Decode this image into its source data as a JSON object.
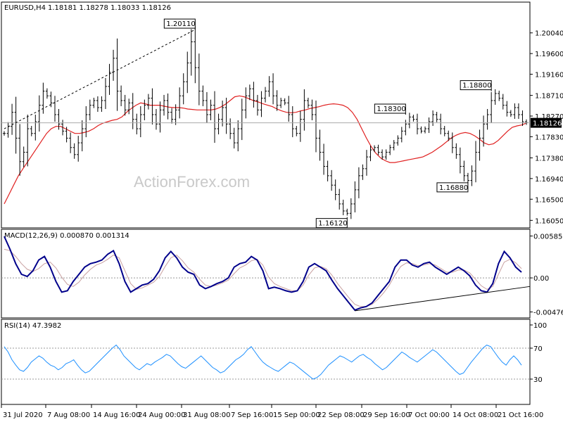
{
  "chart_data": [
    {
      "type": "candlestick",
      "symbol_label": "EURUSD,H4",
      "ohlc_label": "1.18181 1.18278 1.18033 1.18126",
      "ylim": [
        1.1595,
        1.2062
      ],
      "ytick_labels": [
        "1.20040",
        "1.19600",
        "1.19160",
        "1.18710",
        "1.18270",
        "1.17830",
        "1.17380",
        "1.16940",
        "1.16500",
        "1.16050"
      ],
      "current_price": 1.18126,
      "current_price_label": "1.18126",
      "close_series": [
        1.179,
        1.1805,
        1.1835,
        1.178,
        1.173,
        1.175,
        1.18,
        1.179,
        1.1815,
        1.185,
        1.188,
        1.187,
        1.1855,
        1.183,
        1.181,
        1.1795,
        1.178,
        1.176,
        1.1745,
        1.177,
        1.18,
        1.183,
        1.185,
        1.186,
        1.1845,
        1.186,
        1.189,
        1.192,
        1.195,
        1.188,
        1.186,
        1.184,
        1.1855,
        1.182,
        1.18,
        1.183,
        1.185,
        1.1865,
        1.183,
        1.181,
        1.184,
        1.186,
        1.1835,
        1.182,
        1.184,
        1.187,
        1.19,
        1.194,
        1.1985,
        1.193,
        1.188,
        1.186,
        1.183,
        1.185,
        1.18,
        1.182,
        1.1845,
        1.181,
        1.179,
        1.177,
        1.18,
        1.184,
        1.187,
        1.1885,
        1.186,
        1.184,
        1.1865,
        1.188,
        1.19,
        1.187,
        1.185,
        1.186,
        1.1855,
        1.183,
        1.18,
        1.179,
        1.182,
        1.186,
        1.185,
        1.183,
        1.178,
        1.175,
        1.172,
        1.17,
        1.168,
        1.166,
        1.164,
        1.1625,
        1.162,
        1.164,
        1.167,
        1.17,
        1.1715,
        1.174,
        1.1755,
        1.176,
        1.175,
        1.174,
        1.175,
        1.176,
        1.177,
        1.178,
        1.1795,
        1.181,
        1.1825,
        1.182,
        1.18,
        1.1795,
        1.18,
        1.1815,
        1.183,
        1.182,
        1.18,
        1.179,
        1.178,
        1.176,
        1.1745,
        1.172,
        1.17,
        1.169,
        1.171,
        1.175,
        1.178,
        1.181,
        1.183,
        1.186,
        1.1875,
        1.1865,
        1.185,
        1.1835,
        1.183,
        1.1845,
        1.183,
        1.1815,
        1.1813
      ],
      "moving_average_series": [
        1.164,
        1.166,
        1.168,
        1.17,
        1.1715,
        1.173,
        1.1745,
        1.176,
        1.1775,
        1.179,
        1.18,
        1.1805,
        1.1805,
        1.18,
        1.1795,
        1.179,
        1.179,
        1.1792,
        1.1795,
        1.18,
        1.1807,
        1.1812,
        1.1815,
        1.1818,
        1.182,
        1.1825,
        1.1835,
        1.1843,
        1.185,
        1.1855,
        1.1853,
        1.185,
        1.185,
        1.185,
        1.1848,
        1.1846,
        1.1845,
        1.1845,
        1.1844,
        1.1842,
        1.1841,
        1.184,
        1.184,
        1.184,
        1.184,
        1.1842,
        1.1846,
        1.1852,
        1.186,
        1.1868,
        1.187,
        1.1868,
        1.1864,
        1.186,
        1.1857,
        1.1853,
        1.185,
        1.1847,
        1.1842,
        1.1838,
        1.1835,
        1.1834,
        1.1835,
        1.1838,
        1.184,
        1.1843,
        1.1845,
        1.1847,
        1.185,
        1.1852,
        1.1853,
        1.1852,
        1.185,
        1.1845,
        1.1835,
        1.182,
        1.18,
        1.178,
        1.1762,
        1.1748,
        1.1738,
        1.1732,
        1.1728,
        1.1728,
        1.173,
        1.1732,
        1.1734,
        1.1736,
        1.1738,
        1.174,
        1.1745,
        1.175,
        1.1757,
        1.1764,
        1.1772,
        1.178,
        1.1786,
        1.179,
        1.1792,
        1.179,
        1.1785,
        1.1778,
        1.177,
        1.1766,
        1.1768,
        1.1775,
        1.1785,
        1.1795,
        1.1803,
        1.1806,
        1.1808,
        1.1812
      ],
      "annotations": [
        {
          "label": "1.20110",
          "price": 1.2011,
          "index": 49
        },
        {
          "label": "1.18300",
          "price": 1.183,
          "index": 103
        },
        {
          "label": "1.16120",
          "price": 1.1612,
          "index": 88
        },
        {
          "label": "1.18800",
          "price": 1.188,
          "index": 125
        },
        {
          "label": "1.16880",
          "price": 1.1688,
          "index": 119
        }
      ],
      "trendline": {
        "style": "dashed",
        "from": [
          0,
          1.18
        ],
        "to": [
          49,
          1.2011
        ]
      }
    },
    {
      "type": "line",
      "title": "MACD(12,26,9) 0.000870 0.001314",
      "ylim": [
        -0.0052,
        0.0064
      ],
      "ytick_labels": [
        "0.005852",
        "0.00",
        "-0.004761"
      ],
      "series": [
        {
          "values": [
            0.0058,
            0.004,
            0.002,
            0.0005,
            0.0002,
            0.001,
            0.0025,
            0.003,
            0.0015,
            -0.0005,
            -0.002,
            -0.0018,
            -0.0005,
            0.0005,
            0.0015,
            0.002,
            0.0022,
            0.0025,
            0.0033,
            0.0038,
            0.002,
            -0.0005,
            -0.002,
            -0.0015,
            -0.001,
            -0.0008,
            -0.0002,
            0.001,
            0.0028,
            0.0037,
            0.0028,
            0.0015,
            0.0008,
            0.0005,
            -0.001,
            -0.0015,
            -0.0012,
            -0.0008,
            -0.0005,
            0.0,
            0.0015,
            0.002,
            0.0022,
            0.003,
            0.0025,
            0.001,
            -0.0015,
            -0.0013,
            -0.0015,
            -0.0018,
            -0.002,
            -0.0018,
            -0.0005,
            0.0015,
            0.002,
            0.0015,
            0.001,
            -0.0003,
            -0.0015,
            -0.0025,
            -0.0035,
            -0.0045,
            -0.0042,
            -0.004,
            -0.0035,
            -0.0025,
            -0.0015,
            -0.0005,
            0.0015,
            0.0025,
            0.0025,
            0.0018,
            0.0015,
            0.002,
            0.0022,
            0.0015,
            0.001,
            0.0005,
            0.001,
            0.0015,
            0.001,
            0.0003,
            -0.001,
            -0.0018,
            -0.002,
            -0.0008,
            0.002,
            0.0037,
            0.0028,
            0.0015,
            0.0008
          ]
        },
        {
          "values": [
            0.004,
            0.0038,
            0.003,
            0.002,
            0.0012,
            0.0009,
            0.0013,
            0.002,
            0.0022,
            0.0014,
            0.0001,
            -0.0009,
            -0.0012,
            -0.0006,
            0.0004,
            0.0012,
            0.0018,
            0.0021,
            0.0026,
            0.0032,
            0.0028,
            0.001,
            -0.0008,
            -0.0016,
            -0.0014,
            -0.001,
            -0.0006,
            0.0002,
            0.0016,
            0.0028,
            0.0032,
            0.0024,
            0.0014,
            0.0008,
            -0.0002,
            -0.001,
            -0.0012,
            -0.001,
            -0.0007,
            -0.0003,
            0.0006,
            0.0014,
            0.0018,
            0.0024,
            0.0026,
            0.0018,
            0.0001,
            -0.0008,
            -0.0012,
            -0.0015,
            -0.0018,
            -0.0018,
            -0.001,
            0.0004,
            0.0014,
            0.0016,
            0.0013,
            0.0004,
            -0.0008,
            -0.0018,
            -0.0028,
            -0.0037,
            -0.004,
            -0.004,
            -0.0037,
            -0.003,
            -0.0021,
            -0.001,
            0.0004,
            0.0016,
            0.0021,
            0.002,
            0.0017,
            0.0018,
            0.002,
            0.0018,
            0.0013,
            0.0008,
            0.0008,
            0.0011,
            0.0011,
            0.0007,
            -0.0002,
            -0.0011,
            -0.0016,
            -0.0012,
            0.0005,
            0.0022,
            0.0026,
            0.0021,
            0.0013
          ]
        }
      ],
      "trendline": {
        "from": [
          61,
          -0.0046
        ],
        "to": [
          90,
          -0.0012
        ]
      }
    },
    {
      "type": "line",
      "title": "RSI(14) 47.3982",
      "ylim": [
        0,
        100
      ],
      "ytick_labels": [
        "100",
        "70",
        "30"
      ],
      "levels": [
        70,
        30
      ],
      "series": [
        {
          "values": [
            72,
            65,
            55,
            48,
            42,
            40,
            45,
            52,
            56,
            60,
            57,
            52,
            48,
            46,
            42,
            45,
            50,
            52,
            55,
            48,
            42,
            38,
            40,
            45,
            50,
            55,
            60,
            65,
            70,
            74,
            68,
            60,
            55,
            50,
            45,
            42,
            46,
            50,
            48,
            52,
            55,
            58,
            62,
            60,
            55,
            50,
            46,
            44,
            48,
            52,
            56,
            60,
            55,
            50,
            45,
            42,
            38,
            40,
            45,
            50,
            55,
            58,
            62,
            68,
            72,
            65,
            58,
            52,
            48,
            45,
            42,
            40,
            44,
            48,
            52,
            50,
            46,
            42,
            38,
            34,
            30,
            32,
            36,
            42,
            48,
            52,
            56,
            60,
            58,
            55,
            52,
            56,
            60,
            62,
            58,
            55,
            50,
            46,
            42,
            45,
            50,
            55,
            60,
            65,
            62,
            58,
            55,
            52,
            56,
            60,
            64,
            68,
            65,
            60,
            55,
            50,
            45,
            40,
            36,
            38,
            45,
            52,
            58,
            64,
            70,
            74,
            72,
            65,
            58,
            52,
            48,
            55,
            60,
            55,
            48
          ]
        }
      ]
    }
  ],
  "x_axis_labels": [
    "31 Jul 2020",
    "7 Aug 08:00",
    "14 Aug 16:00",
    "24 Aug 00:00",
    "31 Aug 08:00",
    "7 Sep 16:00",
    "15 Sep 00:00",
    "22 Sep 08:00",
    "29 Sep 16:00",
    "7 Oct 00:00",
    "14 Oct 08:00",
    "21 Oct 16:00"
  ],
  "watermark": "ActionForex.com",
  "colors": {
    "price": "#000000",
    "moving_average": "#e02020",
    "macd_line": "#00008b",
    "macd_signal": "#c8a0a0",
    "rsi": "#1e90ff",
    "grid_level": "#999999"
  }
}
